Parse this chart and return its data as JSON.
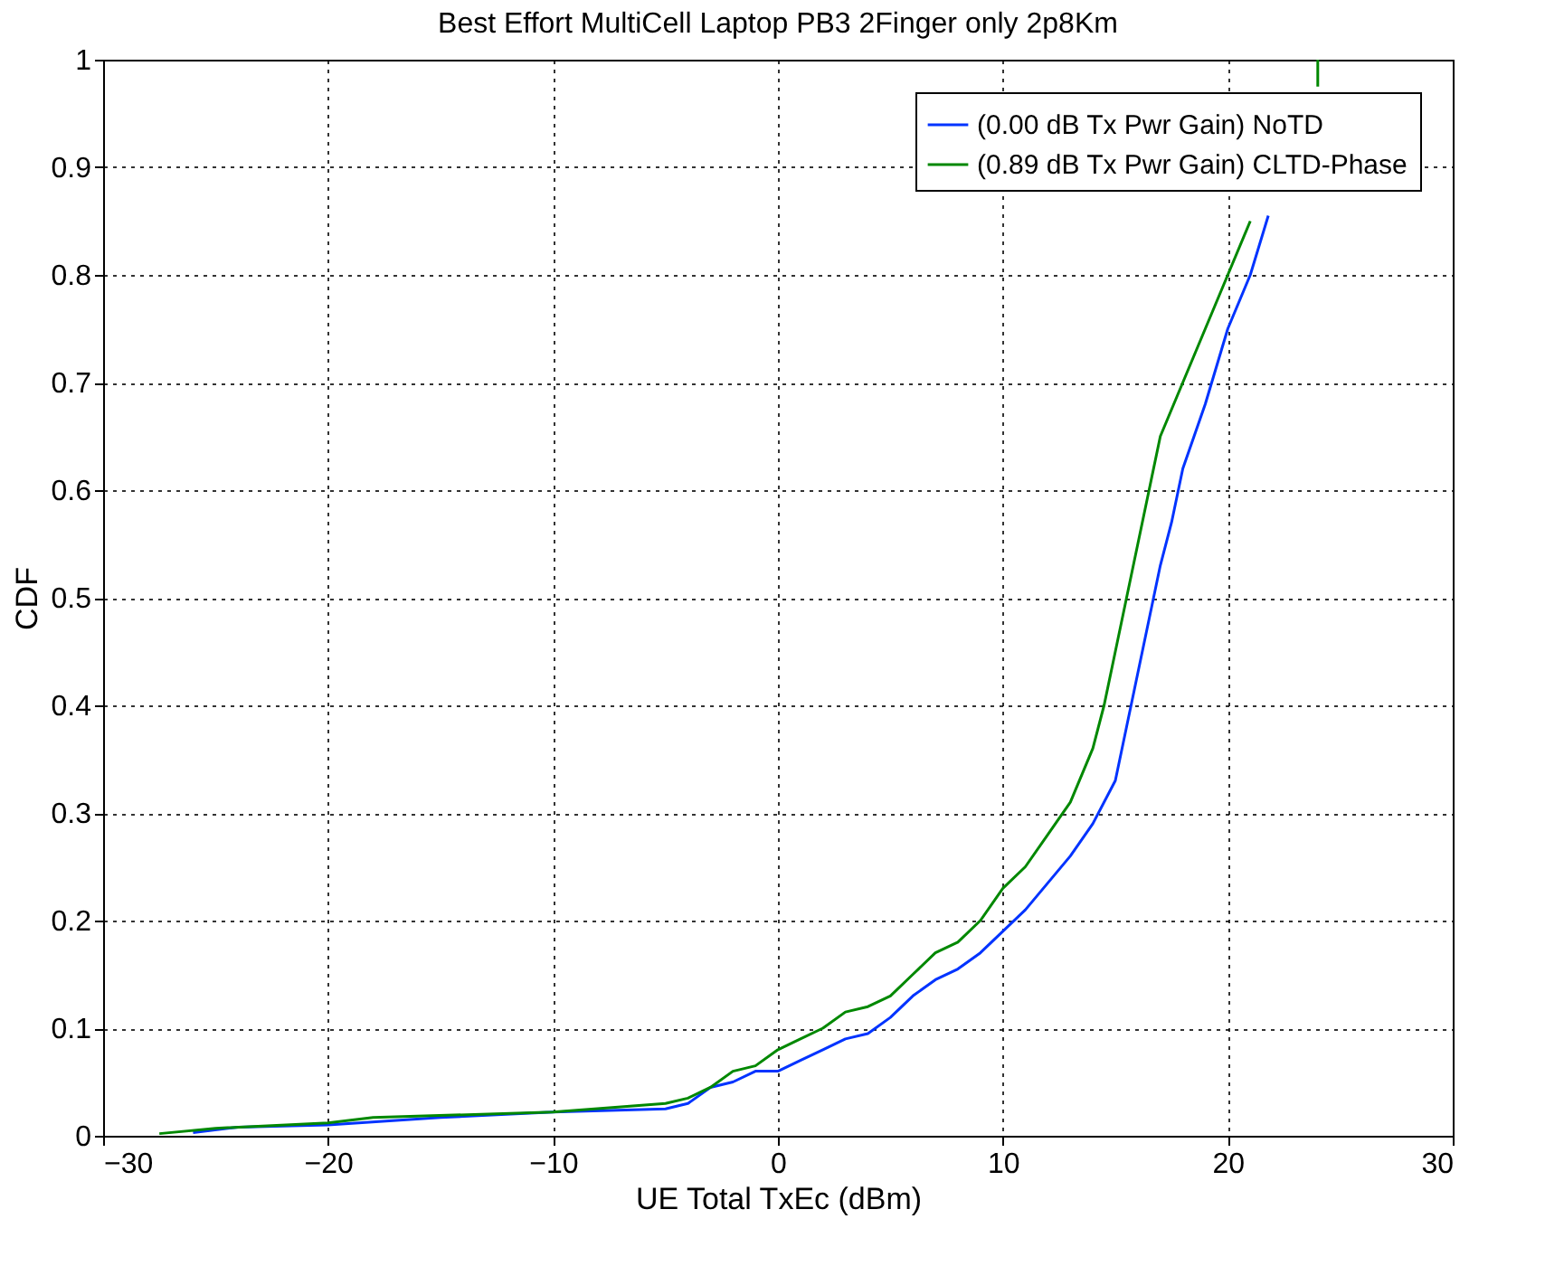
{
  "chart_data": {
    "type": "line",
    "title": "Best Effort MultiCell Laptop PB3 2Finger only 2p8Km",
    "xlabel": "UE Total TxEc (dBm)",
    "ylabel": "CDF",
    "xlim": [
      -30,
      30
    ],
    "xticks": [
      -30,
      -20,
      -10,
      0,
      10,
      20,
      30
    ],
    "ylim": [
      0,
      1
    ],
    "yticks": [
      {
        "value": 0,
        "label": "0"
      },
      0.1,
      0.2,
      0.3,
      0.4,
      0.5,
      0.6,
      0.7,
      0.8,
      0.9,
      {
        "value": 1,
        "label": "1"
      }
    ],
    "grid": true,
    "legend": "top right",
    "line_style": "solid",
    "marker": "none",
    "series": [
      {
        "name": "(0.00 dB Tx Pwr Gain) NoTD",
        "color": "#0033ff",
        "x": [
          -26,
          -24,
          -20,
          -15,
          -10,
          -5,
          -4,
          -3,
          -2,
          -1,
          0,
          1,
          2,
          3,
          4,
          5,
          6,
          7,
          8,
          9,
          10,
          11,
          12,
          13,
          14,
          15,
          15.5,
          16,
          16.5,
          17,
          17.5,
          18,
          18.5,
          19,
          20,
          21,
          21.8
        ],
        "values": [
          0.003,
          0.008,
          0.01,
          0.017,
          0.022,
          0.025,
          0.03,
          0.045,
          0.05,
          0.06,
          0.06,
          0.07,
          0.08,
          0.09,
          0.095,
          0.11,
          0.13,
          0.145,
          0.155,
          0.17,
          0.19,
          0.21,
          0.235,
          0.26,
          0.29,
          0.33,
          0.38,
          0.43,
          0.48,
          0.53,
          0.57,
          0.62,
          0.65,
          0.68,
          0.75,
          0.8,
          0.855
        ]
      },
      {
        "name": "(0.89 dB Tx Pwr Gain) CLTD-Phase",
        "color": "#008800",
        "x": [
          -27.5,
          -25,
          -20,
          -18,
          -10,
          -5,
          -4,
          -3,
          -2,
          -1,
          0,
          1,
          2,
          3,
          4,
          5,
          6,
          7,
          8,
          9,
          10,
          11,
          12,
          13,
          14,
          14.5,
          15,
          15.5,
          16,
          16.5,
          17,
          18,
          19,
          20,
          21,
          22,
          23,
          24,
          24
        ],
        "values": [
          0.002,
          0.007,
          0.012,
          0.017,
          0.022,
          0.03,
          0.035,
          0.045,
          0.06,
          0.065,
          0.08,
          0.09,
          0.1,
          0.115,
          0.12,
          0.13,
          0.15,
          0.17,
          0.18,
          0.2,
          0.23,
          0.25,
          0.28,
          0.31,
          0.36,
          0.4,
          0.45,
          0.5,
          0.55,
          0.6,
          0.65,
          0.7,
          0.75,
          0.8,
          0.85,
          null,
          null,
          0.975,
          1.0
        ]
      }
    ]
  }
}
